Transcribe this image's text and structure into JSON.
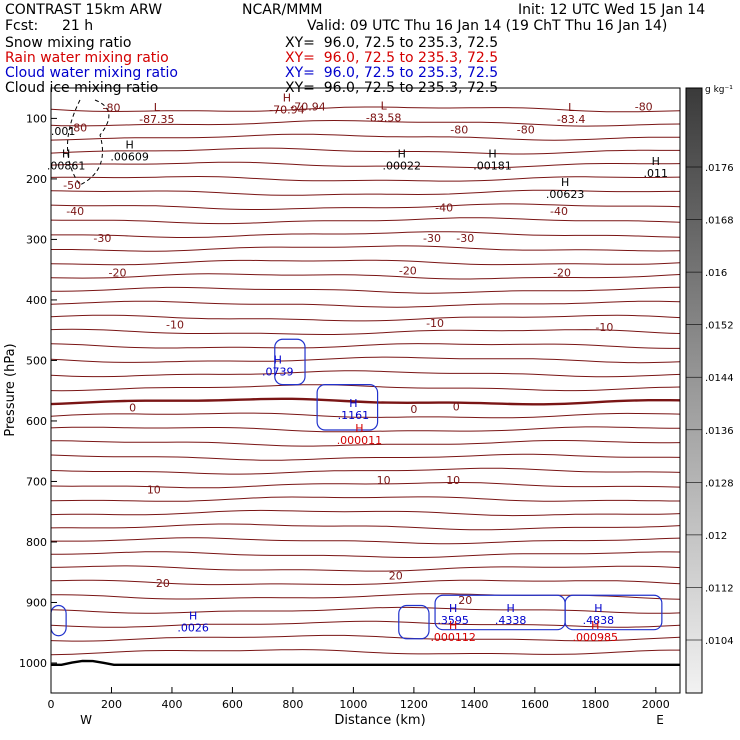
{
  "header": {
    "title": "CONTRAST 15km ARW",
    "center": "NCAR/MMM",
    "init": "Init: 12 UTC Wed 15 Jan 14",
    "fcst_label": "Fcst:",
    "fcst_value": "21 h",
    "valid": "Valid: 09 UTC Thu 16 Jan 14 (19 ChT Thu 16 Jan 14)"
  },
  "legend_fields": [
    {
      "name": "Snow mixing ratio",
      "xy": "XY=  96.0, 72.5 to 235.3, 72.5",
      "color": "#000000"
    },
    {
      "name": "Rain water mixing ratio",
      "xy": "XY=  96.0, 72.5 to 235.3, 72.5",
      "color": "#d40000"
    },
    {
      "name": "Cloud water mixing ratio",
      "xy": "XY=  96.0, 72.5 to 235.3, 72.5",
      "color": "#0000cc"
    },
    {
      "name": "Cloud ice mixing ratio",
      "xy": "XY=  96.0, 72.5 to 235.3, 72.5",
      "color": "#000000"
    }
  ],
  "colorbar": {
    "unit": "g kg⁻¹",
    "ticks": [
      ".0176",
      ".0168",
      ".016",
      ".0152",
      ".0144",
      ".0136",
      ".0128",
      ".012",
      ".0112",
      ".0104"
    ]
  },
  "chart_data": {
    "type": "contour",
    "xlabel": "Distance (km)",
    "ylabel": "Pressure (hPa)",
    "xlim": [
      0,
      2080
    ],
    "ylim": [
      1050,
      50
    ],
    "x_ticks": [
      0,
      200,
      400,
      600,
      800,
      1000,
      1200,
      1400,
      1600,
      1800,
      2000
    ],
    "y_ticks": [
      100,
      200,
      300,
      400,
      500,
      600,
      700,
      800,
      900,
      1000
    ],
    "x_left_label": "W",
    "x_right_label": "E",
    "temperature_isotherms_C": [
      -80,
      -60,
      -50,
      -40,
      -30,
      -20,
      -10,
      0,
      10,
      20
    ],
    "temperature_labels": [
      {
        "text": "-80",
        "x": 200,
        "p": 82
      },
      {
        "text": "-70.94",
        "x": 850,
        "p": 80
      },
      {
        "text": "-80",
        "x": 1350,
        "p": 118
      },
      {
        "text": "-80",
        "x": 1570,
        "p": 118
      },
      {
        "text": "-80",
        "x": 1960,
        "p": 80
      },
      {
        "text": "-80",
        "x": 90,
        "p": 115
      },
      {
        "text": "-50",
        "x": 70,
        "p": 210
      },
      {
        "text": "-40",
        "x": 80,
        "p": 253
      },
      {
        "text": "-40",
        "x": 1300,
        "p": 247
      },
      {
        "text": "-40",
        "x": 1680,
        "p": 253
      },
      {
        "text": "-30",
        "x": 170,
        "p": 298
      },
      {
        "text": "-30",
        "x": 1260,
        "p": 298
      },
      {
        "text": "-30",
        "x": 1370,
        "p": 298
      },
      {
        "text": "-20",
        "x": 220,
        "p": 355
      },
      {
        "text": "-20",
        "x": 1180,
        "p": 351
      },
      {
        "text": "-20",
        "x": 1690,
        "p": 355
      },
      {
        "text": "-10",
        "x": 410,
        "p": 441
      },
      {
        "text": "-10",
        "x": 1270,
        "p": 438
      },
      {
        "text": "-10",
        "x": 1830,
        "p": 445
      },
      {
        "text": "0",
        "x": 270,
        "p": 578
      },
      {
        "text": "0",
        "x": 1200,
        "p": 580
      },
      {
        "text": "0",
        "x": 1340,
        "p": 576
      },
      {
        "text": "10",
        "x": 340,
        "p": 713
      },
      {
        "text": "10",
        "x": 1100,
        "p": 698
      },
      {
        "text": "10",
        "x": 1330,
        "p": 698
      },
      {
        "text": "20",
        "x": 370,
        "p": 868
      },
      {
        "text": "20",
        "x": 1140,
        "p": 855
      },
      {
        "text": "20",
        "x": 1370,
        "p": 896
      }
    ],
    "extrema": [
      {
        "type": "L",
        "value": "-87.35",
        "x": 350,
        "p": 88,
        "color": "#7a0c0c"
      },
      {
        "type": "H",
        "value": "-70.94",
        "x": 780,
        "p": 72,
        "color": "#7a0c0c"
      },
      {
        "type": "L",
        "value": "-83.58",
        "x": 1100,
        "p": 85,
        "color": "#7a0c0c"
      },
      {
        "type": "L",
        "value": "-83.4",
        "x": 1720,
        "p": 88,
        "color": "#7a0c0c"
      },
      {
        "type": "",
        "value": ".001",
        "x": 40,
        "p": 108,
        "color": "#000000"
      },
      {
        "type": "H",
        "value": ".00861",
        "x": 50,
        "p": 165,
        "color": "#000000"
      },
      {
        "type": "H",
        "value": ".00609",
        "x": 260,
        "p": 150,
        "color": "#000000"
      },
      {
        "type": "H",
        "value": ".00022",
        "x": 1160,
        "p": 165,
        "color": "#000000"
      },
      {
        "type": "H",
        "value": ".00181",
        "x": 1460,
        "p": 165,
        "color": "#000000"
      },
      {
        "type": "H",
        "value": ".011",
        "x": 2000,
        "p": 177,
        "color": "#000000"
      },
      {
        "type": "H",
        "value": ".00623",
        "x": 1700,
        "p": 212,
        "color": "#000000"
      },
      {
        "type": "H",
        "value": ".0739",
        "x": 750,
        "p": 505,
        "color": "#0000cc"
      },
      {
        "type": "H",
        "value": ".1161",
        "x": 1000,
        "p": 577,
        "color": "#0000cc"
      },
      {
        "type": "H",
        "value": ".000011",
        "x": 1020,
        "p": 618,
        "color": "#d40000"
      },
      {
        "type": "H",
        "value": ".0026",
        "x": 470,
        "p": 928,
        "color": "#0000cc"
      },
      {
        "type": "H",
        "value": ".3595",
        "x": 1330,
        "p": 916,
        "color": "#0000cc"
      },
      {
        "type": "H",
        "value": ".4338",
        "x": 1520,
        "p": 916,
        "color": "#0000cc"
      },
      {
        "type": "H",
        "value": ".4838",
        "x": 1810,
        "p": 916,
        "color": "#0000cc"
      },
      {
        "type": "H",
        "value": ".000112",
        "x": 1330,
        "p": 944,
        "color": "#d40000"
      },
      {
        "type": "H",
        "value": ".000985",
        "x": 1800,
        "p": 944,
        "color": "#d40000"
      }
    ]
  }
}
